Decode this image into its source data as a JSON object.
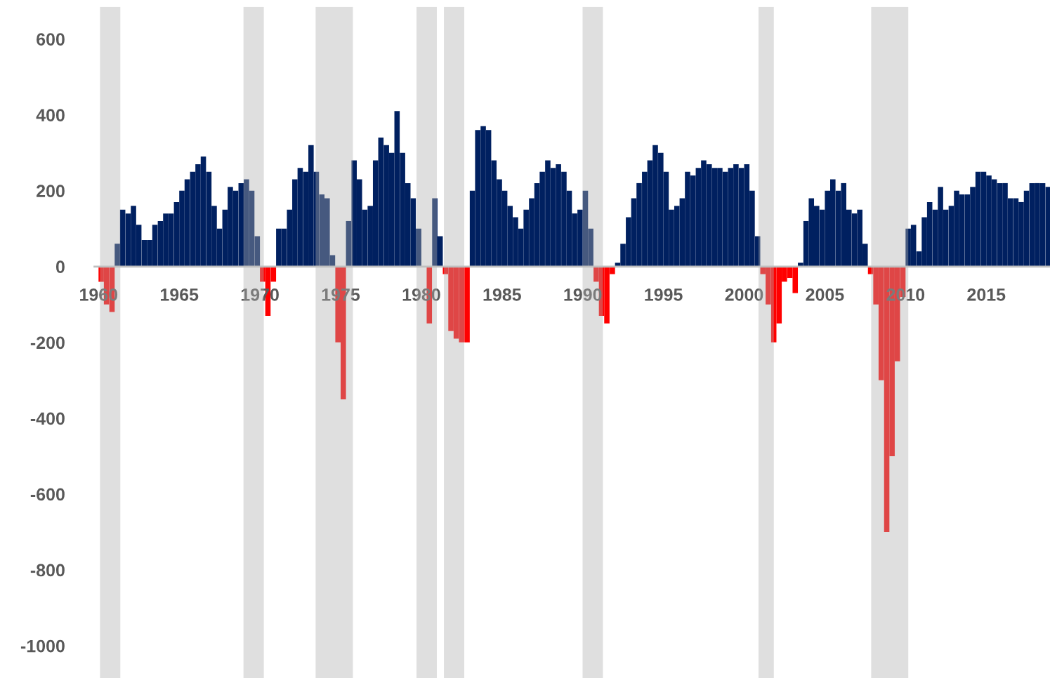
{
  "chart_data": {
    "type": "bar",
    "series": [
      {
        "color": "#002060",
        "x": [
          1961.0,
          1961.33,
          1961.67,
          1962.0,
          1962.33,
          1962.67,
          1963.0,
          1963.33,
          1963.67,
          1964.0,
          1964.33,
          1964.67,
          1965.0,
          1965.33,
          1965.67,
          1966.0,
          1966.33,
          1966.67,
          1967.0,
          1967.33,
          1967.67,
          1968.0,
          1968.33,
          1968.67,
          1969.0,
          1969.33,
          1969.67,
          1971.0,
          1971.33,
          1971.67,
          1972.0,
          1972.33,
          1972.67,
          1973.0,
          1973.33,
          1973.67,
          1974.0,
          1974.33,
          1975.33,
          1975.67,
          1976.0,
          1976.33,
          1976.67,
          1977.0,
          1977.33,
          1977.67,
          1978.0,
          1978.33,
          1978.67,
          1979.0,
          1979.33,
          1979.67,
          1980.67,
          1981.0,
          1983.0,
          1983.33,
          1983.67,
          1984.0,
          1984.33,
          1984.67,
          1985.0,
          1985.33,
          1985.67,
          1986.0,
          1986.33,
          1986.67,
          1987.0,
          1987.33,
          1987.67,
          1988.0,
          1988.33,
          1988.67,
          1989.0,
          1989.33,
          1989.67,
          1990.0,
          1990.33,
          1992.0,
          1992.33,
          1992.67,
          1993.0,
          1993.33,
          1993.67,
          1994.0,
          1994.33,
          1994.67,
          1995.0,
          1995.33,
          1995.67,
          1996.0,
          1996.33,
          1996.67,
          1997.0,
          1997.33,
          1997.67,
          1998.0,
          1998.33,
          1998.67,
          1999.0,
          1999.33,
          1999.67,
          2000.0,
          2000.33,
          2000.67,
          2003.33,
          2003.67,
          2004.0,
          2004.33,
          2004.67,
          2005.0,
          2005.33,
          2005.67,
          2006.0,
          2006.33,
          2006.67,
          2007.0,
          2007.33,
          2010.0,
          2010.33,
          2010.67,
          2011.0,
          2011.33,
          2011.67,
          2012.0,
          2012.33,
          2012.67,
          2013.0,
          2013.33,
          2013.67,
          2014.0,
          2014.33,
          2014.67,
          2015.0,
          2015.33,
          2015.67,
          2016.0,
          2016.33,
          2016.67,
          2017.0,
          2017.33,
          2017.67,
          2018.0,
          2018.33,
          2018.67
        ],
        "values": [
          60,
          150,
          140,
          160,
          110,
          70,
          70,
          110,
          120,
          140,
          140,
          170,
          200,
          230,
          250,
          270,
          290,
          250,
          160,
          100,
          150,
          210,
          200,
          220,
          230,
          200,
          80,
          100,
          100,
          150,
          230,
          260,
          250,
          320,
          250,
          190,
          180,
          30,
          120,
          280,
          230,
          150,
          160,
          280,
          340,
          320,
          300,
          410,
          300,
          220,
          180,
          100,
          180,
          80,
          200,
          360,
          370,
          360,
          280,
          230,
          200,
          160,
          130,
          100,
          150,
          180,
          220,
          250,
          280,
          260,
          270,
          250,
          200,
          140,
          150,
          200,
          100,
          10,
          60,
          130,
          180,
          220,
          250,
          280,
          320,
          300,
          250,
          150,
          160,
          180,
          250,
          240,
          260,
          280,
          270,
          260,
          260,
          250,
          260,
          270,
          260,
          270,
          200,
          80,
          10,
          120,
          180,
          160,
          150,
          200,
          230,
          200,
          220,
          150,
          140,
          150,
          60,
          100,
          110,
          40,
          130,
          170,
          150,
          210,
          150,
          160,
          200,
          190,
          190,
          210,
          250,
          250,
          240,
          230,
          220,
          220,
          180,
          180,
          170,
          200,
          220,
          220,
          220,
          210
        ]
      },
      {
        "color": "#ff0000",
        "x": [
          1960.0,
          1960.33,
          1960.67,
          1970.0,
          1970.33,
          1970.67,
          1974.67,
          1975.0,
          1980.33,
          1981.33,
          1981.67,
          1982.0,
          1982.33,
          1982.67,
          1990.67,
          1991.0,
          1991.33,
          1991.67,
          2001.0,
          2001.33,
          2001.67,
          2002.0,
          2002.33,
          2002.67,
          2003.0,
          2007.67,
          2008.0,
          2008.33,
          2008.67,
          2009.0,
          2009.33,
          2009.67
        ],
        "values": [
          -40,
          -100,
          -120,
          -40,
          -130,
          -40,
          -200,
          -350,
          -150,
          -20,
          -170,
          -190,
          -200,
          -200,
          -40,
          -130,
          -150,
          -20,
          -20,
          -100,
          -200,
          -150,
          -40,
          -30,
          -70,
          -20,
          -100,
          -300,
          -700,
          -500,
          -250,
          -80
        ]
      }
    ],
    "xlim": [
      1959.75,
      2018.95
    ],
    "xticks": [
      1960,
      1965,
      1970,
      1975,
      1980,
      1985,
      1990,
      1995,
      2000,
      2005,
      2010,
      2015
    ],
    "ylim": [
      -1085,
      685
    ],
    "yticks": [
      -1000,
      -800,
      -600,
      -400,
      -200,
      0,
      200,
      400,
      600
    ],
    "bands": [
      {
        "axis": "x",
        "from": 1960.09,
        "to": 1961.35,
        "color": "#b0b0b0"
      },
      {
        "axis": "x",
        "from": 1968.98,
        "to": 1970.24,
        "color": "#b0b0b0"
      },
      {
        "axis": "x",
        "from": 1973.45,
        "to": 1975.76,
        "color": "#b0b0b0"
      },
      {
        "axis": "x",
        "from": 1979.7,
        "to": 1980.96,
        "color": "#b0b0b0"
      },
      {
        "axis": "x",
        "from": 1981.4,
        "to": 1982.66,
        "color": "#b0b0b0"
      },
      {
        "axis": "x",
        "from": 1989.99,
        "to": 1991.25,
        "color": "#b0b0b0"
      },
      {
        "axis": "x",
        "from": 2000.89,
        "to": 2001.84,
        "color": "#b0b0b0"
      },
      {
        "axis": "x",
        "from": 2007.87,
        "to": 2010.17,
        "color": "#b0b0b0"
      }
    ],
    "grid": false
  }
}
